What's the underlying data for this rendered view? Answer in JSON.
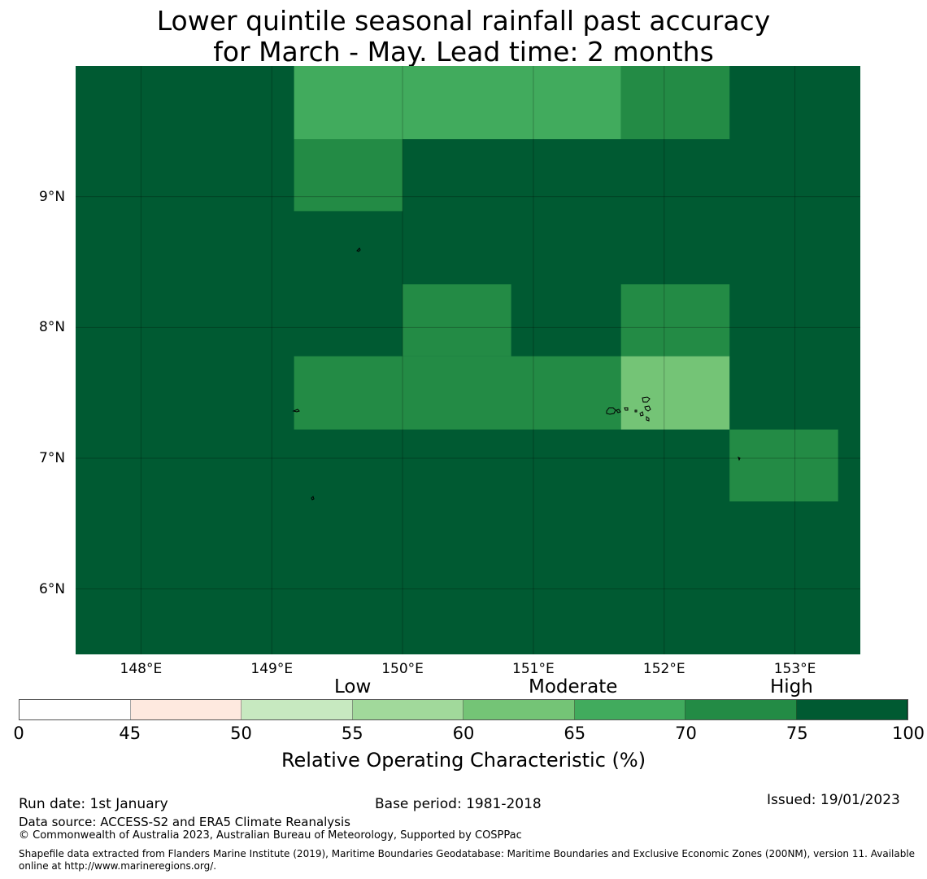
{
  "title": {
    "line1": "Lower quintile seasonal rainfall past accuracy",
    "line2": "for March - May. Lead time: 2 months"
  },
  "map": {
    "lat_range": [
      5.5,
      10.0
    ],
    "lon_range": [
      147.5,
      153.5
    ],
    "lat_ticks": [
      "9°N",
      "8°N",
      "7°N",
      "6°N"
    ],
    "lon_ticks": [
      "148°E",
      "149°E",
      "150°E",
      "151°E",
      "152°E",
      "153°E"
    ],
    "background_value": 80,
    "grid_cells": [
      {
        "lat_min": 9.44,
        "lat_max": 10.0,
        "lon_min": 149.17,
        "lon_max": 151.67,
        "value": 67
      },
      {
        "lat_min": 9.44,
        "lat_max": 10.0,
        "lon_min": 151.67,
        "lon_max": 152.5,
        "value": 72
      },
      {
        "lat_min": 8.89,
        "lat_max": 9.44,
        "lon_min": 149.17,
        "lon_max": 150.0,
        "value": 72
      },
      {
        "lat_min": 7.78,
        "lat_max": 8.33,
        "lon_min": 150.0,
        "lon_max": 150.83,
        "value": 72
      },
      {
        "lat_min": 7.78,
        "lat_max": 8.33,
        "lon_min": 151.67,
        "lon_max": 152.5,
        "value": 72
      },
      {
        "lat_min": 7.22,
        "lat_max": 7.78,
        "lon_min": 149.17,
        "lon_max": 151.67,
        "value": 72
      },
      {
        "lat_min": 7.22,
        "lat_max": 7.78,
        "lon_min": 151.67,
        "lon_max": 152.5,
        "value": 62
      },
      {
        "lat_min": 6.67,
        "lat_max": 7.22,
        "lon_min": 152.5,
        "lon_max": 153.33,
        "value": 72
      }
    ]
  },
  "legend": {
    "categories": [
      "Low",
      "Moderate",
      "High"
    ],
    "ticks": [
      "0",
      "45",
      "50",
      "55",
      "60",
      "65",
      "70",
      "75",
      "100"
    ],
    "bins": [
      {
        "from": 0,
        "to": 45,
        "color": "#ffffff"
      },
      {
        "from": 45,
        "to": 50,
        "color": "#fee9df"
      },
      {
        "from": 50,
        "to": 55,
        "color": "#c7e9c0"
      },
      {
        "from": 55,
        "to": 60,
        "color": "#a1d99b"
      },
      {
        "from": 60,
        "to": 65,
        "color": "#74c476"
      },
      {
        "from": 65,
        "to": 70,
        "color": "#41ab5d"
      },
      {
        "from": 70,
        "to": 75,
        "color": "#238b45"
      },
      {
        "from": 75,
        "to": 100,
        "color": "#005a32"
      }
    ],
    "label": "Relative Operating Characteristic (%)"
  },
  "footer": {
    "run_date": "Run date: 1st January",
    "base_period": "Base period: 1981-2018",
    "issued": "Issued: 19/01/2023",
    "data_source": "Data source: ACCESS-S2 and ERA5 Climate Reanalysis",
    "copyright": "© Commonwealth of Australia 2023, Australian Bureau of Meteorology, Supported by COSPPac",
    "shapefile": "Shapefile data extracted from Flanders Marine Institute (2019), Maritime Boundaries Geodatabase: Maritime Boundaries and Exclusive Economic Zones (200NM), version 11. Available online at http://www.marineregions.org/."
  }
}
